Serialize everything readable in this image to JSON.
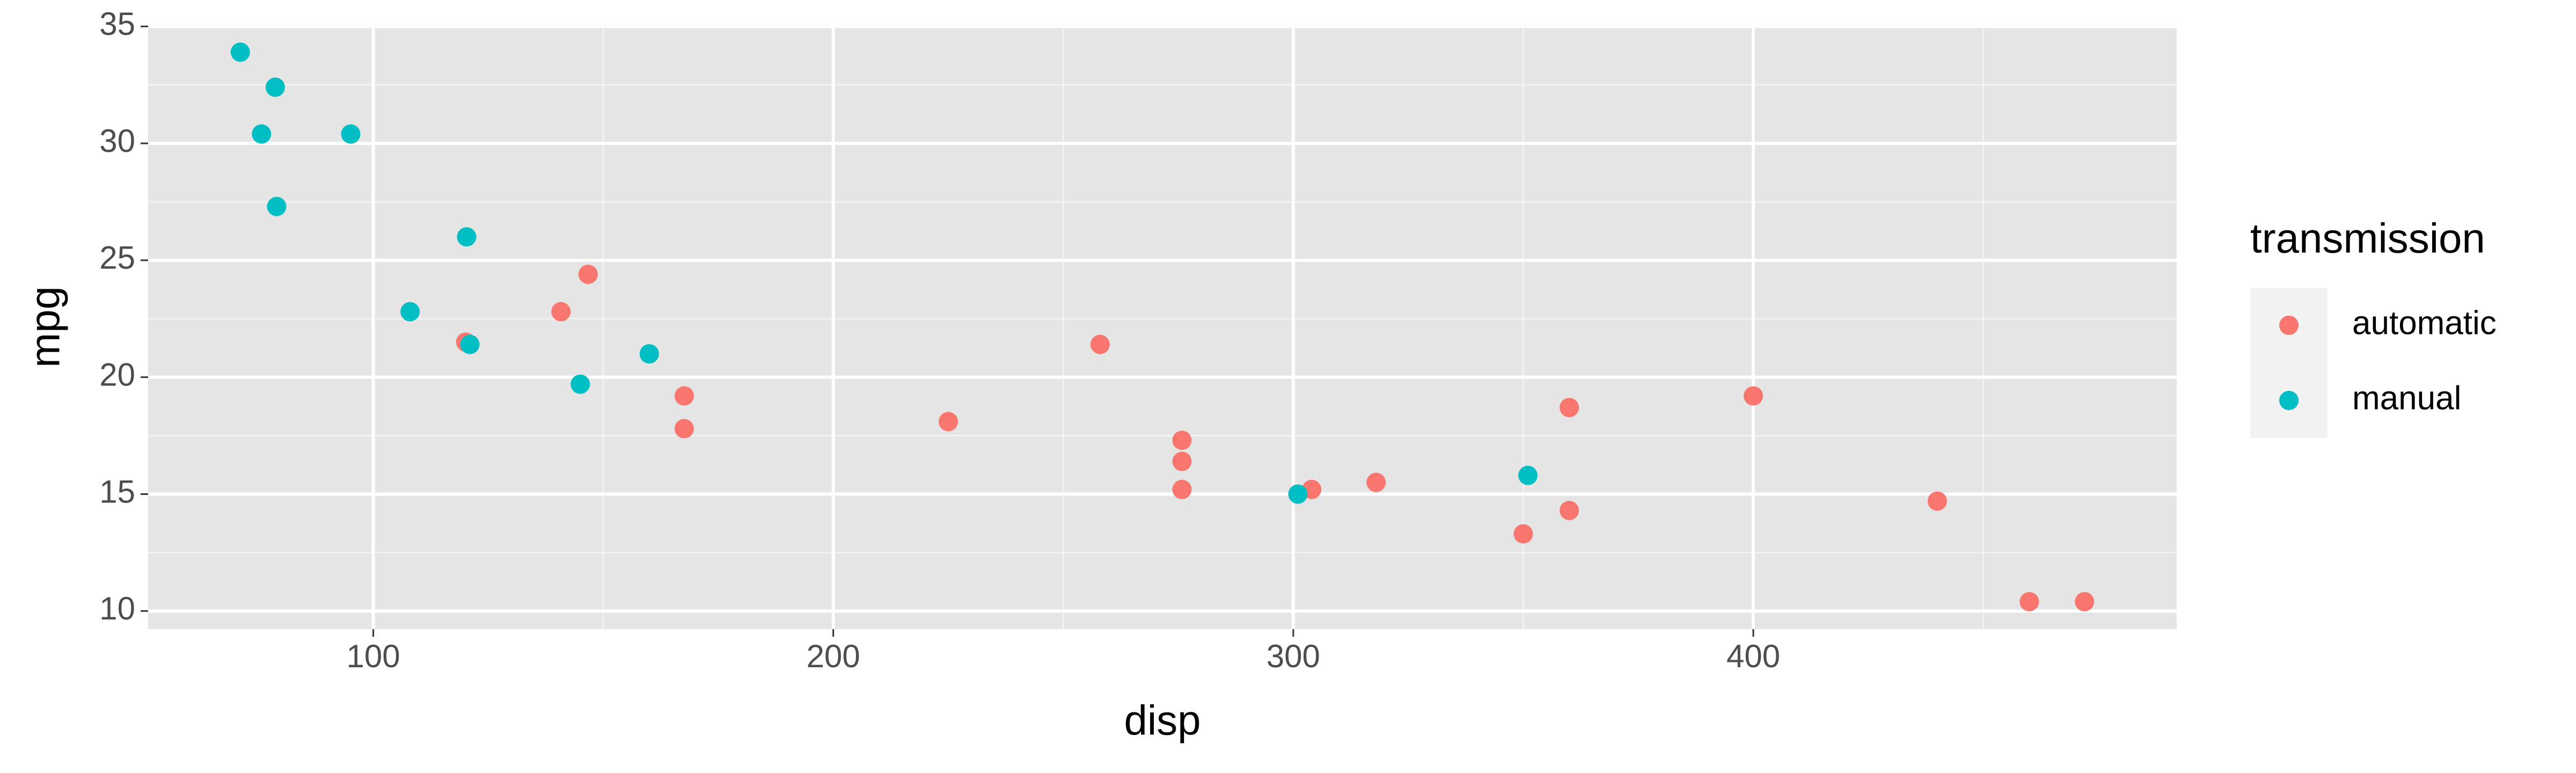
{
  "chart_data": {
    "type": "scatter",
    "x_label": "disp",
    "y_label": "mpg",
    "legend_title": "transmission",
    "legend_position": "right",
    "grid": true,
    "xlim": [
      51.055,
      492.045
    ],
    "ylim": [
      9.225,
      35.075
    ],
    "xticks": [
      100,
      200,
      300,
      400
    ],
    "yticks": [
      10,
      15,
      20,
      25,
      30,
      35
    ],
    "series": [
      {
        "name": "automatic",
        "color": "#F8766D",
        "x": [
          258,
          360,
          225,
          360,
          146.7,
          140.8,
          167.6,
          167.6,
          275.8,
          275.8,
          275.8,
          472,
          460,
          440,
          120.1,
          318,
          304,
          350,
          400
        ],
        "values": [
          21.4,
          18.7,
          18.1,
          14.3,
          24.4,
          22.8,
          19.2,
          17.8,
          16.4,
          17.3,
          15.2,
          10.4,
          10.4,
          14.7,
          21.5,
          15.5,
          15.2,
          13.3,
          19.2
        ]
      },
      {
        "name": "manual",
        "color": "#00BFC4",
        "x": [
          160,
          160,
          108,
          78.7,
          75.7,
          71.1,
          79,
          120.3,
          95.1,
          351,
          145,
          301,
          121
        ],
        "values": [
          21,
          21,
          22.8,
          32.4,
          30.4,
          33.9,
          27.3,
          26,
          30.4,
          15.8,
          19.7,
          15,
          21.4
        ]
      }
    ]
  }
}
